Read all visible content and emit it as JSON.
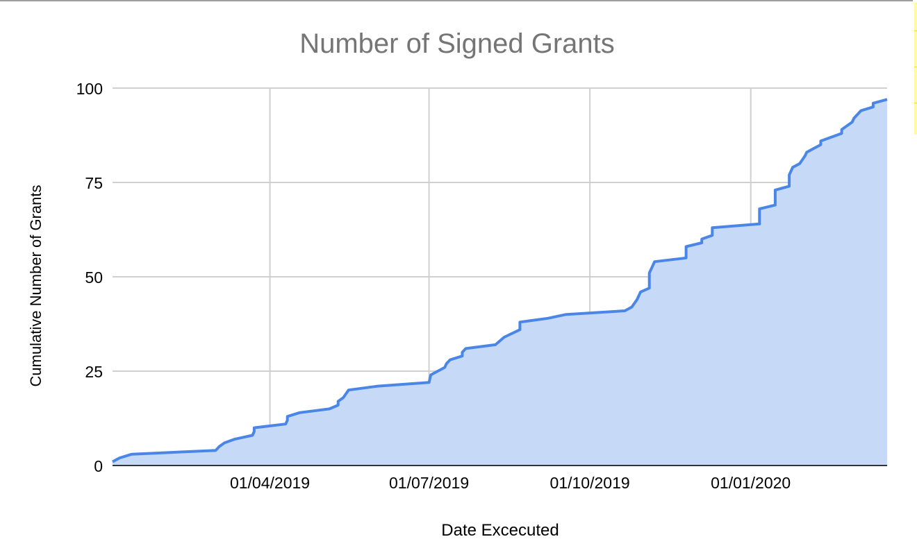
{
  "chart_data": {
    "type": "area",
    "title": "Number of Signed Grants",
    "xlabel": "Date Excecuted",
    "ylabel": "Cumulative Number of Grants",
    "xlim": [
      "2019-01-01",
      "2020-03-19"
    ],
    "ylim": [
      0,
      100
    ],
    "y_ticks": [
      0,
      25,
      50,
      75,
      100
    ],
    "x_ticks": [
      {
        "date": "2019-04-01",
        "label": "01/04/2019"
      },
      {
        "date": "2019-07-01",
        "label": "01/07/2019"
      },
      {
        "date": "2019-10-01",
        "label": "01/10/2019"
      },
      {
        "date": "2020-01-01",
        "label": "01/01/2020"
      }
    ],
    "grid": true,
    "legend": "none",
    "colors": {
      "line": "#4a86e8",
      "fill": "#c6d9f7",
      "grid": "#d0d0d0",
      "title": "#757575"
    },
    "series": [
      {
        "points": [
          [
            "2019-01-01",
            1
          ],
          [
            "2019-01-05",
            2
          ],
          [
            "2019-01-12",
            3
          ],
          [
            "2019-03-01",
            4
          ],
          [
            "2019-03-03",
            5
          ],
          [
            "2019-03-06",
            6
          ],
          [
            "2019-03-12",
            7
          ],
          [
            "2019-03-22",
            8
          ],
          [
            "2019-03-23",
            9
          ],
          [
            "2019-03-23",
            10
          ],
          [
            "2019-04-10",
            11
          ],
          [
            "2019-04-11",
            12
          ],
          [
            "2019-04-11",
            13
          ],
          [
            "2019-04-18",
            14
          ],
          [
            "2019-05-05",
            15
          ],
          [
            "2019-05-10",
            16
          ],
          [
            "2019-05-10",
            17
          ],
          [
            "2019-05-13",
            18
          ],
          [
            "2019-05-16",
            20
          ],
          [
            "2019-06-01",
            21
          ],
          [
            "2019-07-01",
            22
          ],
          [
            "2019-07-02",
            24
          ],
          [
            "2019-07-10",
            26
          ],
          [
            "2019-07-11",
            27
          ],
          [
            "2019-07-13",
            28
          ],
          [
            "2019-07-20",
            29
          ],
          [
            "2019-07-20",
            30
          ],
          [
            "2019-07-22",
            31
          ],
          [
            "2019-08-08",
            32
          ],
          [
            "2019-08-13",
            34
          ],
          [
            "2019-08-22",
            36
          ],
          [
            "2019-08-22",
            38
          ],
          [
            "2019-09-07",
            39
          ],
          [
            "2019-09-17",
            40
          ],
          [
            "2019-10-21",
            41
          ],
          [
            "2019-10-25",
            42
          ],
          [
            "2019-10-28",
            44
          ],
          [
            "2019-10-30",
            46
          ],
          [
            "2019-11-04",
            47
          ],
          [
            "2019-11-04",
            51
          ],
          [
            "2019-11-06",
            53
          ],
          [
            "2019-11-07",
            54
          ],
          [
            "2019-11-25",
            55
          ],
          [
            "2019-11-25",
            58
          ],
          [
            "2019-12-04",
            59
          ],
          [
            "2019-12-04",
            60
          ],
          [
            "2019-12-10",
            61
          ],
          [
            "2019-12-10",
            63
          ],
          [
            "2020-01-06",
            64
          ],
          [
            "2020-01-06",
            68
          ],
          [
            "2020-01-15",
            69
          ],
          [
            "2020-01-15",
            73
          ],
          [
            "2020-01-23",
            74
          ],
          [
            "2020-01-23",
            77
          ],
          [
            "2020-01-25",
            79
          ],
          [
            "2020-01-29",
            80
          ],
          [
            "2020-02-01",
            82
          ],
          [
            "2020-02-02",
            83
          ],
          [
            "2020-02-06",
            84
          ],
          [
            "2020-02-10",
            85
          ],
          [
            "2020-02-10",
            86
          ],
          [
            "2020-02-22",
            88
          ],
          [
            "2020-02-22",
            89
          ],
          [
            "2020-02-28",
            91
          ],
          [
            "2020-02-29",
            92
          ],
          [
            "2020-03-04",
            94
          ],
          [
            "2020-03-11",
            95
          ],
          [
            "2020-03-11",
            96
          ],
          [
            "2020-03-19",
            97
          ]
        ]
      }
    ]
  }
}
